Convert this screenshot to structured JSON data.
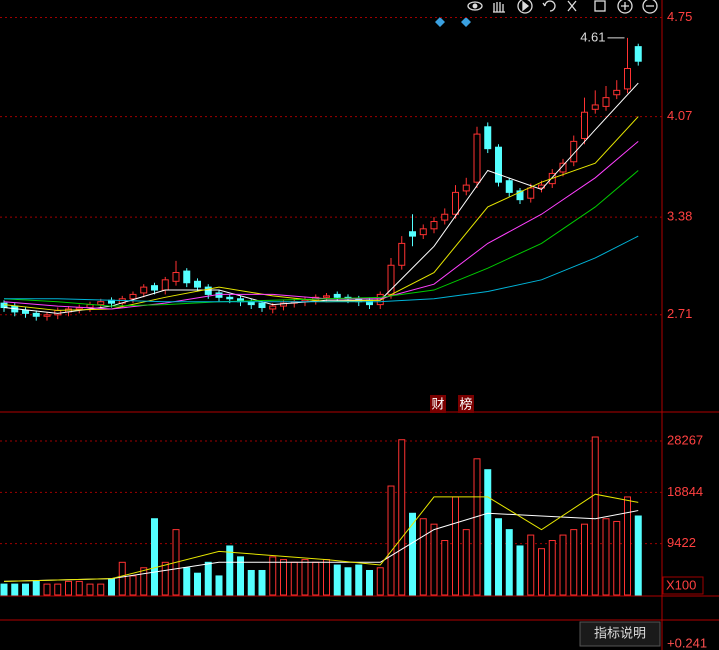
{
  "chart_data": [
    {
      "type": "candlestick",
      "open": [
        2.79,
        2.77,
        2.74,
        2.72,
        2.7,
        2.71,
        2.73,
        2.75,
        2.76,
        2.78,
        2.81,
        2.79,
        2.82,
        2.86,
        2.91,
        2.88,
        2.94,
        3.01,
        2.94,
        2.9,
        2.86,
        2.83,
        2.82,
        2.8,
        2.79,
        2.75,
        2.77,
        2.79,
        2.8,
        2.81,
        2.83,
        2.85,
        2.83,
        2.82,
        2.81,
        2.78,
        2.85,
        3.05,
        3.28,
        3.26,
        3.3,
        3.36,
        3.4,
        3.56,
        3.62,
        4.0,
        3.86,
        3.63,
        3.56,
        3.51,
        3.58,
        3.61,
        3.69,
        3.76,
        3.92,
        4.12,
        4.14,
        4.22,
        4.26,
        4.55
      ],
      "high": [
        2.81,
        2.79,
        2.76,
        2.74,
        2.73,
        2.76,
        2.77,
        2.78,
        2.8,
        2.82,
        2.83,
        2.84,
        2.87,
        2.92,
        2.93,
        2.97,
        3.08,
        3.03,
        2.96,
        2.92,
        2.88,
        2.85,
        2.84,
        2.82,
        2.81,
        2.79,
        2.81,
        2.82,
        2.83,
        2.85,
        2.86,
        2.87,
        2.85,
        2.84,
        2.83,
        2.87,
        3.1,
        3.25,
        3.4,
        3.33,
        3.38,
        3.44,
        3.6,
        3.65,
        4.0,
        4.03,
        3.88,
        3.65,
        3.58,
        3.61,
        3.63,
        3.71,
        3.78,
        3.94,
        4.2,
        4.25,
        4.28,
        4.32,
        4.61,
        4.57
      ],
      "low": [
        2.73,
        2.7,
        2.69,
        2.67,
        2.67,
        2.68,
        2.7,
        2.72,
        2.73,
        2.75,
        2.76,
        2.76,
        2.79,
        2.83,
        2.85,
        2.85,
        2.91,
        2.9,
        2.87,
        2.82,
        2.8,
        2.79,
        2.77,
        2.75,
        2.73,
        2.72,
        2.74,
        2.76,
        2.77,
        2.78,
        2.8,
        2.8,
        2.79,
        2.77,
        2.75,
        2.75,
        2.82,
        3.02,
        3.18,
        3.23,
        3.27,
        3.33,
        3.37,
        3.53,
        3.58,
        3.82,
        3.59,
        3.52,
        3.47,
        3.48,
        3.55,
        3.58,
        3.66,
        3.73,
        3.88,
        4.09,
        4.11,
        4.19,
        4.23,
        4.42
      ],
      "close": [
        2.76,
        2.73,
        2.72,
        2.7,
        2.71,
        2.74,
        2.75,
        2.76,
        2.78,
        2.8,
        2.79,
        2.82,
        2.85,
        2.9,
        2.88,
        2.95,
        3.0,
        2.93,
        2.9,
        2.85,
        2.83,
        2.82,
        2.8,
        2.78,
        2.76,
        2.77,
        2.79,
        2.8,
        2.81,
        2.83,
        2.84,
        2.83,
        2.82,
        2.8,
        2.78,
        2.85,
        3.05,
        3.2,
        3.25,
        3.3,
        3.35,
        3.4,
        3.55,
        3.6,
        3.95,
        3.85,
        3.62,
        3.55,
        3.5,
        3.58,
        3.6,
        3.68,
        3.75,
        3.9,
        4.1,
        4.15,
        4.2,
        4.25,
        4.4,
        4.45
      ],
      "up_color": "#ff3232",
      "down_color": "#54ffff",
      "lines": [
        {
          "color": "#ffffff",
          "x": [
            0,
            5,
            10,
            15,
            20,
            25,
            30,
            35,
            40,
            45,
            50,
            55,
            59
          ],
          "values": [
            2.76,
            2.72,
            2.77,
            2.88,
            2.88,
            2.78,
            2.81,
            2.81,
            3.18,
            3.7,
            3.57,
            3.98,
            4.3
          ]
        },
        {
          "color": "#e6e600",
          "x": [
            0,
            5,
            10,
            15,
            20,
            25,
            30,
            35,
            40,
            45,
            50,
            55,
            59
          ],
          "values": [
            2.78,
            2.74,
            2.75,
            2.83,
            2.9,
            2.84,
            2.8,
            2.81,
            3.0,
            3.45,
            3.62,
            3.75,
            4.07
          ]
        },
        {
          "color": "#ff40ff",
          "x": [
            0,
            5,
            10,
            15,
            20,
            25,
            30,
            35,
            40,
            45,
            50,
            55,
            59
          ],
          "values": [
            2.8,
            2.77,
            2.75,
            2.79,
            2.85,
            2.85,
            2.82,
            2.82,
            2.92,
            3.2,
            3.4,
            3.65,
            3.9
          ]
        },
        {
          "color": "#00cc00",
          "x": [
            0,
            5,
            10,
            15,
            20,
            25,
            30,
            35,
            40,
            45,
            50,
            55,
            59
          ],
          "values": [
            2.82,
            2.8,
            2.77,
            2.78,
            2.8,
            2.81,
            2.82,
            2.83,
            2.88,
            3.03,
            3.2,
            3.45,
            3.7
          ]
        },
        {
          "color": "#00b4d8",
          "x": [
            0,
            5,
            10,
            15,
            20,
            25,
            30,
            35,
            40,
            45,
            50,
            55,
            59
          ],
          "values": [
            2.82,
            2.82,
            2.81,
            2.8,
            2.8,
            2.8,
            2.8,
            2.8,
            2.82,
            2.87,
            2.95,
            3.1,
            3.25
          ]
        }
      ],
      "ylim": [
        2.05,
        4.87
      ],
      "yticks": [
        4.75,
        4.07,
        3.38,
        2.71
      ],
      "grid": true,
      "annotation": {
        "value": 4.61,
        "label": "4.61"
      },
      "badges": [
        "财",
        "榜"
      ]
    },
    {
      "type": "volume",
      "values": [
        2000,
        2000,
        2000,
        2500,
        2000,
        2000,
        2500,
        2500,
        2000,
        2000,
        3000,
        6000,
        3500,
        5000,
        14000,
        6000,
        12000,
        5000,
        4000,
        6000,
        3500,
        9000,
        7000,
        4500,
        4500,
        7000,
        6500,
        6000,
        6500,
        6000,
        6500,
        5500,
        5000,
        5500,
        4500,
        5000,
        20000,
        28500,
        15000,
        14000,
        13000,
        10000,
        18000,
        12000,
        25000,
        23000,
        14000,
        12000,
        9000,
        11000,
        8500,
        10000,
        11000,
        12000,
        13000,
        29000,
        14000,
        13500,
        18000,
        14500
      ],
      "lines": [
        {
          "color": "#ffffff",
          "x": [
            0,
            10,
            20,
            30,
            35,
            40,
            45,
            50,
            55,
            59
          ],
          "values": [
            2500,
            3000,
            6000,
            6000,
            6000,
            12000,
            15000,
            14500,
            14000,
            15500
          ]
        },
        {
          "color": "#e6e600",
          "x": [
            0,
            10,
            20,
            30,
            35,
            40,
            45,
            50,
            55,
            59
          ],
          "values": [
            2500,
            3000,
            8000,
            6500,
            5500,
            18000,
            18000,
            12000,
            18500,
            17000
          ]
        }
      ],
      "ylim": [
        0,
        33040
      ],
      "yticks": [
        9422,
        18844,
        28267
      ],
      "grid": true,
      "unit_label": "X100"
    }
  ],
  "footer": {
    "button": "指标说明",
    "value": "+0.241"
  }
}
